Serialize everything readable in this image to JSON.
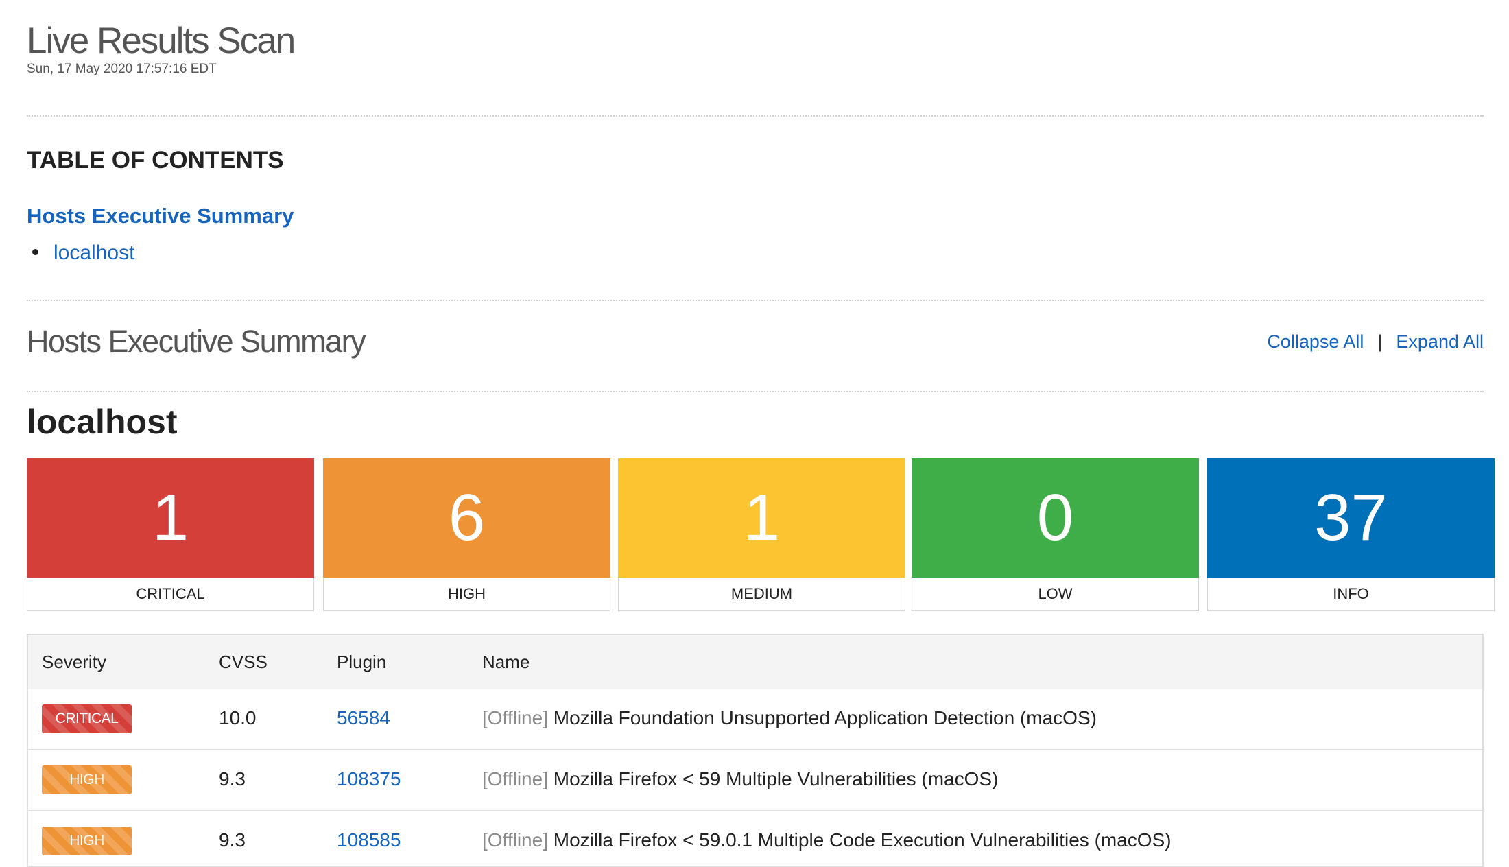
{
  "header": {
    "title": "Live Results Scan",
    "date": "Sun, 17 May 2020 17:57:16 EDT"
  },
  "toc": {
    "heading": "TABLE OF CONTENTS",
    "section_link": "Hosts Executive Summary",
    "items": [
      "localhost"
    ]
  },
  "summary": {
    "title": "Hosts Executive Summary",
    "collapse_all": "Collapse All",
    "separator": "|",
    "expand_all": "Expand All"
  },
  "host": {
    "name": "localhost",
    "severities": [
      {
        "label": "CRITICAL",
        "count": "1",
        "color": "#d43f3a"
      },
      {
        "label": "HIGH",
        "count": "6",
        "color": "#ee9336"
      },
      {
        "label": "MEDIUM",
        "count": "1",
        "color": "#fdc431"
      },
      {
        "label": "LOW",
        "count": "0",
        "color": "#3fae49"
      },
      {
        "label": "INFO",
        "count": "37",
        "color": "#0071b9"
      }
    ]
  },
  "table": {
    "headers": [
      "Severity",
      "CVSS",
      "Plugin",
      "Name"
    ],
    "rows": [
      {
        "severity": "CRITICAL",
        "cvss": "10.0",
        "plugin": "56584",
        "prefix": "[Offline]",
        "name": "Mozilla Foundation Unsupported Application Detection (macOS)"
      },
      {
        "severity": "HIGH",
        "cvss": "9.3",
        "plugin": "108375",
        "prefix": "[Offline]",
        "name": "Mozilla Firefox < 59 Multiple Vulnerabilities (macOS)"
      },
      {
        "severity": "HIGH",
        "cvss": "9.3",
        "plugin": "108585",
        "prefix": "[Offline]",
        "name": "Mozilla Firefox < 59.0.1 Multiple Code Execution Vulnerabilities (macOS)"
      }
    ]
  }
}
